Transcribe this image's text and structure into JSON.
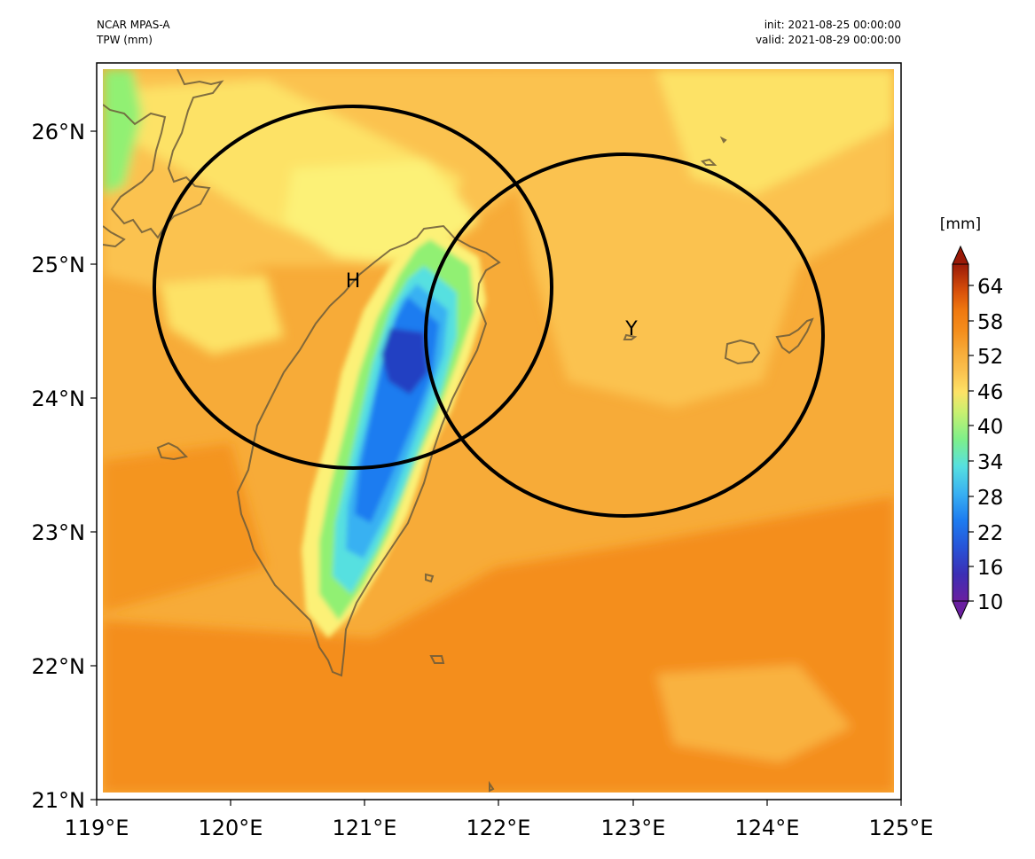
{
  "header": {
    "model": "NCAR MPAS-A",
    "variable": "TPW (mm)",
    "init": "init: 2021-08-25 00:00:00",
    "valid": "valid: 2021-08-29 00:00:00"
  },
  "axes": {
    "x_ticks": [
      "119°E",
      "120°E",
      "121°E",
      "122°E",
      "123°E",
      "124°E",
      "125°E"
    ],
    "y_ticks": [
      "21°N",
      "22°N",
      "23°N",
      "24°N",
      "25°N",
      "26°N"
    ]
  },
  "markers": {
    "h_label": "H",
    "y_label": "Y"
  },
  "colorbar": {
    "unit": "[mm]",
    "labels": [
      "10",
      "16",
      "22",
      "28",
      "34",
      "40",
      "46",
      "52",
      "58",
      "64"
    ]
  },
  "colors": {
    "background_field": "#f7ab38",
    "deep_orange": "#f48e1c",
    "light_orange": "#fbc24f",
    "yellow": "#fde266",
    "pale_yellow": "#fcf177",
    "green": "#91f073",
    "cyan": "#56e0e0",
    "blue": "#1d7cf0",
    "dark_blue": "#2340c2",
    "coast": "#6b5a3a",
    "circle": "#000000"
  }
}
